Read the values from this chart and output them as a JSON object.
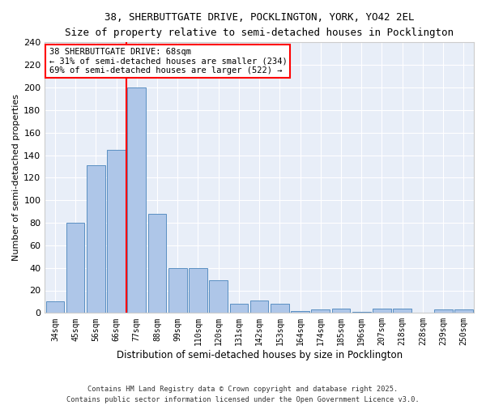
{
  "title_line1": "38, SHERBUTTGATE DRIVE, POCKLINGTON, YORK, YO42 2EL",
  "title_line2": "Size of property relative to semi-detached houses in Pocklington",
  "xlabel": "Distribution of semi-detached houses by size in Pocklington",
  "ylabel": "Number of semi-detached properties",
  "bar_labels": [
    "34sqm",
    "45sqm",
    "56sqm",
    "66sqm",
    "77sqm",
    "88sqm",
    "99sqm",
    "110sqm",
    "120sqm",
    "131sqm",
    "142sqm",
    "153sqm",
    "164sqm",
    "174sqm",
    "185sqm",
    "196sqm",
    "207sqm",
    "218sqm",
    "228sqm",
    "239sqm",
    "250sqm"
  ],
  "bar_values": [
    10,
    80,
    131,
    145,
    200,
    88,
    40,
    40,
    29,
    8,
    11,
    8,
    2,
    3,
    4,
    1,
    4,
    4,
    0,
    3,
    3
  ],
  "bar_color": "#aec6e8",
  "bar_edge_color": "#5a8fc2",
  "vline_x": 3.5,
  "vline_color": "red",
  "annotation_label": "38 SHERBUTTGATE DRIVE: 68sqm",
  "annotation_smaller": "← 31% of semi-detached houses are smaller (234)",
  "annotation_larger": "69% of semi-detached houses are larger (522) →",
  "ylim": [
    0,
    240
  ],
  "yticks": [
    0,
    20,
    40,
    60,
    80,
    100,
    120,
    140,
    160,
    180,
    200,
    220,
    240
  ],
  "plot_bg_color": "#e8eef8",
  "footer_line1": "Contains HM Land Registry data © Crown copyright and database right 2025.",
  "footer_line2": "Contains public sector information licensed under the Open Government Licence v3.0."
}
